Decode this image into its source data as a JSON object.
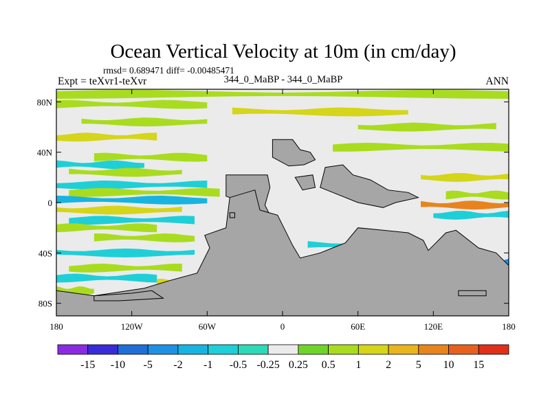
{
  "chart_data": {
    "type": "heatmap",
    "title": "Ocean Vertical Velocity at 10m (in cm/day)",
    "stats_text": "rmsd= 0.689471 diff= -0.00485471",
    "experiment_text": "Expt = teXvr1-teXvr",
    "case_text": "344_0_MaBP - 344_0_MaBP",
    "season_text": "ANN",
    "projection": "cylindrical equidistant",
    "xlim": [
      -180,
      180
    ],
    "ylim": [
      -90,
      90
    ],
    "x_ticks": [
      {
        "value": -180,
        "label": "180"
      },
      {
        "value": -120,
        "label": "120W"
      },
      {
        "value": -60,
        "label": "60W"
      },
      {
        "value": 0,
        "label": "0"
      },
      {
        "value": 60,
        "label": "60E"
      },
      {
        "value": 120,
        "label": "120E"
      },
      {
        "value": 180,
        "label": "180"
      }
    ],
    "y_ticks": [
      {
        "value": 80,
        "label": "80N"
      },
      {
        "value": 40,
        "label": "40N"
      },
      {
        "value": 0,
        "label": "0"
      },
      {
        "value": -40,
        "label": "40S"
      },
      {
        "value": -80,
        "label": "80S"
      }
    ],
    "colorbar": {
      "boundaries": [
        "-15",
        "-10",
        "-5",
        "-2",
        "-1",
        "-0.5",
        "-0.25",
        "0.25",
        "0.5",
        "1",
        "2",
        "5",
        "10",
        "15"
      ],
      "colors": [
        "#8A2BE2",
        "#3A2BD8",
        "#1F6FD6",
        "#1E90E6",
        "#18B4E0",
        "#1ECFD8",
        "#2ED9B8",
        "#EBEBEB",
        "#6FD42A",
        "#A9DC1E",
        "#D5D51A",
        "#E8B51C",
        "#E8841E",
        "#E8601E",
        "#E0301A"
      ]
    },
    "land_color": "#A6A6A6",
    "land_regions": [
      {
        "name": "north-america-interior",
        "points": [
          [
            -8,
            50
          ],
          [
            8,
            50
          ],
          [
            14,
            42
          ],
          [
            22,
            40
          ],
          [
            26,
            34
          ],
          [
            17,
            30
          ],
          [
            5,
            29
          ],
          [
            -8,
            36
          ]
        ]
      },
      {
        "name": "eurasia-block",
        "points": [
          [
            -45,
            22
          ],
          [
            -12,
            22
          ],
          [
            -10,
            12
          ],
          [
            -14,
            -2
          ],
          [
            -8,
            -14
          ],
          [
            -14,
            -22
          ],
          [
            -24,
            -22
          ],
          [
            -20,
            -14
          ],
          [
            -30,
            0
          ],
          [
            -45,
            5
          ]
        ]
      },
      {
        "name": "main-continent-west",
        "points": [
          [
            -62,
            -26
          ],
          [
            -45,
            -20
          ],
          [
            -42,
            4
          ],
          [
            -22,
            10
          ],
          [
            -18,
            -6
          ],
          [
            -4,
            -10
          ],
          [
            2,
            -22
          ],
          [
            8,
            -34
          ],
          [
            14,
            -44
          ],
          [
            30,
            -40
          ],
          [
            40,
            -36
          ],
          [
            50,
            -32
          ],
          [
            60,
            -20
          ],
          [
            80,
            -22
          ],
          [
            100,
            -24
          ],
          [
            112,
            -30
          ],
          [
            116,
            -38
          ],
          [
            130,
            -24
          ],
          [
            138,
            -22
          ],
          [
            156,
            -36
          ],
          [
            170,
            -40
          ],
          [
            180,
            -50
          ],
          [
            180,
            -90
          ],
          [
            -180,
            -90
          ],
          [
            -180,
            -70
          ],
          [
            -150,
            -74
          ],
          [
            -110,
            -68
          ],
          [
            -90,
            -62
          ],
          [
            -68,
            -56
          ],
          [
            -58,
            -36
          ]
        ]
      },
      {
        "name": "east-island",
        "points": [
          [
            34,
            28
          ],
          [
            48,
            30
          ],
          [
            56,
            22
          ],
          [
            70,
            18
          ],
          [
            84,
            10
          ],
          [
            100,
            8
          ],
          [
            108,
            4
          ],
          [
            90,
            0
          ],
          [
            80,
            -4
          ],
          [
            60,
            0
          ],
          [
            40,
            8
          ],
          [
            30,
            12
          ]
        ]
      },
      {
        "name": "small-island-a",
        "points": [
          [
            10,
            20
          ],
          [
            24,
            22
          ],
          [
            26,
            12
          ],
          [
            16,
            10
          ]
        ]
      },
      {
        "name": "small-island-b",
        "points": [
          [
            -42,
            -8
          ],
          [
            -38,
            -8
          ],
          [
            -38,
            -12
          ],
          [
            -42,
            -12
          ]
        ]
      },
      {
        "name": "south-islet",
        "points": [
          [
            140,
            -70
          ],
          [
            162,
            -70
          ],
          [
            162,
            -74
          ],
          [
            140,
            -74
          ]
        ]
      },
      {
        "name": "antarctic-shelf",
        "points": [
          [
            -150,
            -74
          ],
          [
            -120,
            -72
          ],
          [
            -104,
            -70
          ],
          [
            -95,
            -76
          ],
          [
            -130,
            -78
          ],
          [
            -150,
            -78
          ]
        ]
      }
    ],
    "field_bands": [
      {
        "lat": 86,
        "lon_start": -180,
        "lon_end": 180,
        "category": "0.5"
      },
      {
        "lat": 78,
        "lon_start": -180,
        "lon_end": -60,
        "category": "0.5"
      },
      {
        "lat": 72,
        "lon_start": -40,
        "lon_end": 100,
        "category": "1"
      },
      {
        "lat": 64,
        "lon_start": -160,
        "lon_end": -60,
        "category": "0.5"
      },
      {
        "lat": 60,
        "lon_start": 60,
        "lon_end": 170,
        "category": "0.5"
      },
      {
        "lat": 52,
        "lon_start": -180,
        "lon_end": -100,
        "category": "1"
      },
      {
        "lat": 44,
        "lon_start": 40,
        "lon_end": 180,
        "category": "0.5"
      },
      {
        "lat": 36,
        "lon_start": -150,
        "lon_end": -60,
        "category": "0.5"
      },
      {
        "lat": 30,
        "lon_start": -180,
        "lon_end": -110,
        "category": "-0.5"
      },
      {
        "lat": 24,
        "lon_start": -170,
        "lon_end": -80,
        "category": "0.5"
      },
      {
        "lat": 20,
        "lon_start": 110,
        "lon_end": 180,
        "category": "1"
      },
      {
        "lat": 14,
        "lon_start": -180,
        "lon_end": -60,
        "category": "-0.5"
      },
      {
        "lat": 8,
        "lon_start": -170,
        "lon_end": -50,
        "category": "0.5"
      },
      {
        "lat": 6,
        "lon_start": 130,
        "lon_end": 180,
        "category": "0.5"
      },
      {
        "lat": 2,
        "lon_start": -180,
        "lon_end": -60,
        "category": "-1"
      },
      {
        "lat": -2,
        "lon_start": 110,
        "lon_end": 180,
        "category": "5"
      },
      {
        "lat": -6,
        "lon_start": -180,
        "lon_end": -80,
        "category": "1"
      },
      {
        "lat": -10,
        "lon_start": 120,
        "lon_end": 180,
        "category": "-0.5"
      },
      {
        "lat": -14,
        "lon_start": -170,
        "lon_end": -70,
        "category": "-0.5"
      },
      {
        "lat": -20,
        "lon_start": -180,
        "lon_end": -100,
        "category": "0.5"
      },
      {
        "lat": -28,
        "lon_start": -150,
        "lon_end": -70,
        "category": "0.5"
      },
      {
        "lat": -34,
        "lon_start": 20,
        "lon_end": 110,
        "category": "-0.5"
      },
      {
        "lat": -40,
        "lon_start": -180,
        "lon_end": -70,
        "category": "-0.5"
      },
      {
        "lat": -48,
        "lon_start": 150,
        "lon_end": 180,
        "category": "-2"
      },
      {
        "lat": -52,
        "lon_start": -170,
        "lon_end": -80,
        "category": "0.5"
      },
      {
        "lat": -60,
        "lon_start": -180,
        "lon_end": -100,
        "category": "-0.5"
      },
      {
        "lat": -64,
        "lon_start": -100,
        "lon_end": -60,
        "category": "1"
      },
      {
        "lat": -70,
        "lon_start": -180,
        "lon_end": -150,
        "category": "0.5"
      }
    ]
  }
}
